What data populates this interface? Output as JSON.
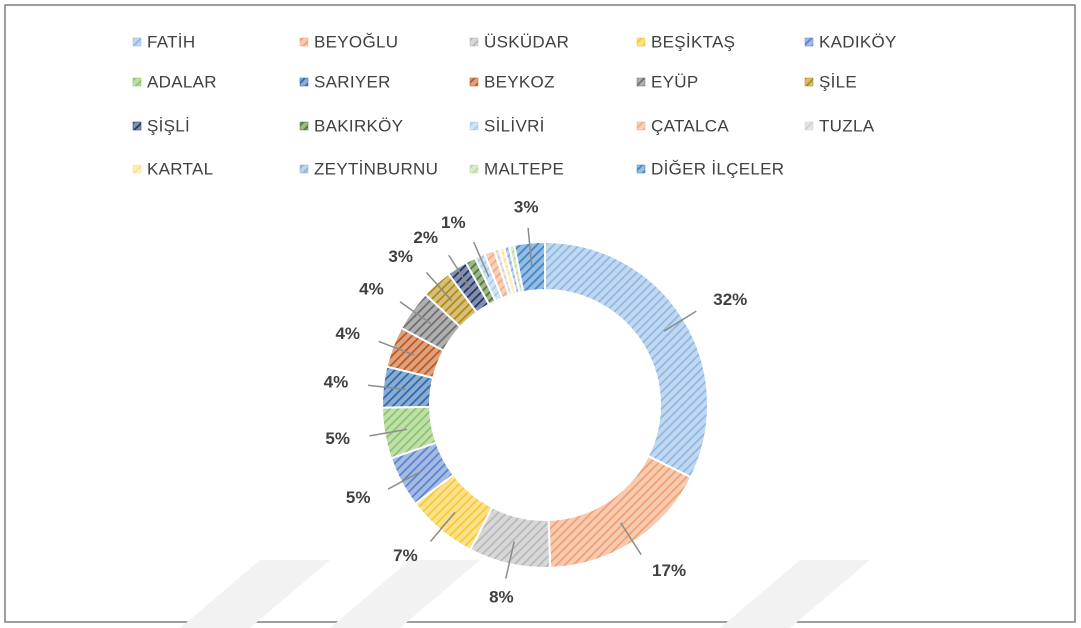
{
  "chart_data": {
    "type": "pie",
    "categories": [
      "FATİH",
      "BEYOĞLU",
      "ÜSKÜDAR",
      "BEŞİKTAŞ",
      "KADIKÖY",
      "ADALAR",
      "SARIYER",
      "BEYKOZ",
      "EYÜP",
      "ŞİLE",
      "ŞİŞLİ",
      "BAKIRKÖY",
      "SİLİVRİ",
      "ÇATALCA",
      "TUZLA",
      "KARTAL",
      "ZEYTİNBURNU",
      "MALTEPE",
      "DİĞER İLÇELER"
    ],
    "values": [
      32,
      17,
      8,
      7,
      5,
      5,
      4,
      4,
      4,
      3,
      2,
      1,
      1,
      1,
      0.5,
      0.5,
      0.5,
      0.5,
      3
    ],
    "value_labels": [
      "32%",
      "17%",
      "8%",
      "7%",
      "5%",
      "5%",
      "4%",
      "4%",
      "4%",
      "3%",
      "2%",
      null,
      "1%",
      null,
      null,
      null,
      null,
      null,
      "3%"
    ],
    "colors": [
      "#8db8e3",
      "#f0a070",
      "#b8b8b8",
      "#f7c830",
      "#5a82cc",
      "#8cc46a",
      "#2e69ad",
      "#c0561a",
      "#6e6e6e",
      "#b08a10",
      "#1f3567",
      "#4d7a30",
      "#a9cdee",
      "#f3ab80",
      "#d0d0d0",
      "#ffe08a",
      "#8faadc",
      "#b8dca0",
      "#3f86c8"
    ]
  }
}
